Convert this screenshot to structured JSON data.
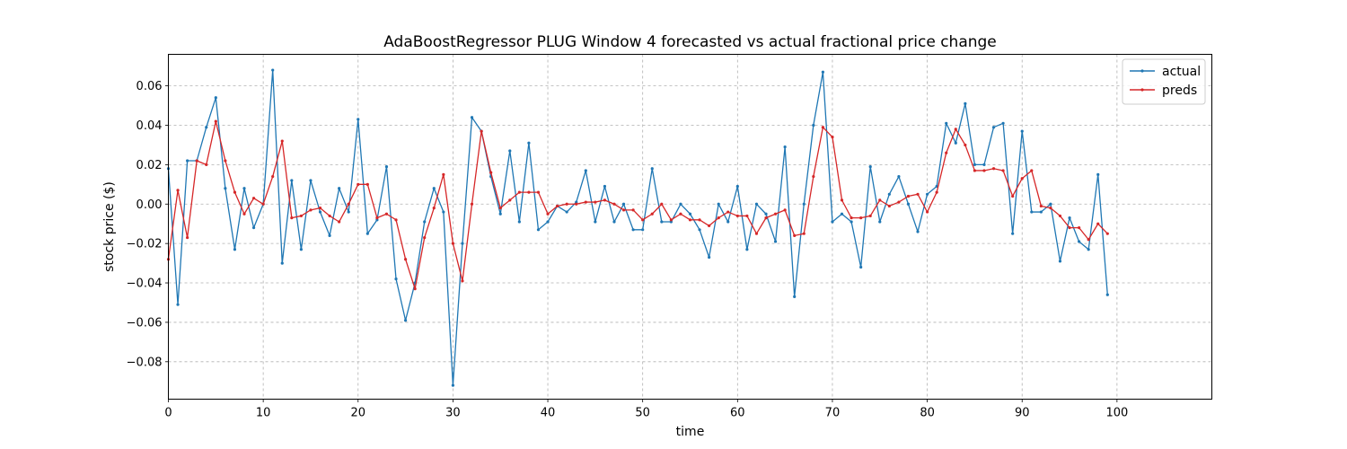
{
  "chart_data": {
    "type": "line",
    "title": "AdaBoostRegressor PLUG Window 4 forecasted vs actual fractional price change",
    "xlabel": "time",
    "ylabel": "stock price ($)",
    "xlim": [
      0,
      110
    ],
    "ylim": [
      -0.099,
      0.076
    ],
    "xticks": [
      0,
      10,
      20,
      30,
      40,
      50,
      60,
      70,
      80,
      90,
      100
    ],
    "xtick_labels": [
      "0",
      "10",
      "20",
      "30",
      "40",
      "50",
      "60",
      "70",
      "80",
      "90",
      "100"
    ],
    "yticks": [
      -0.08,
      -0.06,
      -0.04,
      -0.02,
      0.0,
      0.02,
      0.04,
      0.06
    ],
    "ytick_labels": [
      "−0.08",
      "−0.06",
      "−0.04",
      "−0.02",
      "0.00",
      "0.02",
      "0.04",
      "0.06"
    ],
    "grid": true,
    "legend_position": "top-right",
    "series": [
      {
        "name": "actual",
        "color": "#1f77b4",
        "values": [
          0.018,
          -0.051,
          0.022,
          0.022,
          0.039,
          0.054,
          0.008,
          -0.023,
          0.008,
          -0.012,
          0.0,
          0.068,
          -0.03,
          0.012,
          -0.023,
          0.012,
          -0.004,
          -0.016,
          0.008,
          -0.004,
          0.043,
          -0.015,
          -0.008,
          0.019,
          -0.038,
          -0.059,
          -0.04,
          -0.009,
          0.008,
          -0.004,
          -0.092,
          -0.02,
          0.044,
          0.037,
          0.014,
          -0.005,
          0.027,
          -0.009,
          0.031,
          -0.013,
          -0.009,
          -0.001,
          -0.004,
          0.001,
          0.017,
          -0.009,
          0.009,
          -0.009,
          0.0,
          -0.013,
          -0.013,
          0.018,
          -0.009,
          -0.009,
          0.0,
          -0.005,
          -0.013,
          -0.027,
          0.0,
          -0.009,
          0.009,
          -0.023,
          0.0,
          -0.005,
          -0.019,
          0.029,
          -0.047,
          0.0,
          0.04,
          0.067,
          -0.009,
          -0.005,
          -0.009,
          -0.032,
          0.019,
          -0.009,
          0.005,
          0.014,
          0.0,
          -0.014,
          0.005,
          0.009,
          0.041,
          0.031,
          0.051,
          0.02,
          0.02,
          0.039,
          0.041,
          -0.015,
          0.037,
          -0.004,
          -0.004,
          0.0,
          -0.029,
          -0.007,
          -0.019,
          -0.023,
          0.015,
          -0.046
        ]
      },
      {
        "name": "preds",
        "color": "#d62728",
        "values": [
          -0.028,
          0.007,
          -0.017,
          0.022,
          0.02,
          0.042,
          0.022,
          0.006,
          -0.005,
          0.003,
          0.0,
          0.014,
          0.032,
          -0.007,
          -0.006,
          -0.003,
          -0.002,
          -0.006,
          -0.009,
          0.0,
          0.01,
          0.01,
          -0.007,
          -0.005,
          -0.008,
          -0.028,
          -0.043,
          -0.017,
          -0.002,
          0.015,
          -0.02,
          -0.039,
          0.0,
          0.037,
          0.016,
          -0.002,
          0.002,
          0.006,
          0.006,
          0.006,
          -0.005,
          -0.001,
          0.0,
          0.0,
          0.001,
          0.001,
          0.002,
          0.0,
          -0.003,
          -0.003,
          -0.008,
          -0.005,
          0.0,
          -0.008,
          -0.005,
          -0.008,
          -0.008,
          -0.011,
          -0.007,
          -0.004,
          -0.006,
          -0.006,
          -0.015,
          -0.007,
          -0.005,
          -0.003,
          -0.016,
          -0.015,
          0.014,
          0.039,
          0.034,
          0.002,
          -0.007,
          -0.007,
          -0.006,
          0.002,
          -0.001,
          0.001,
          0.004,
          0.005,
          -0.004,
          0.006,
          0.026,
          0.038,
          0.03,
          0.017,
          0.017,
          0.018,
          0.017,
          0.004,
          0.013,
          0.017,
          -0.001,
          -0.002,
          -0.006,
          -0.012,
          -0.012,
          -0.018,
          -0.01,
          -0.015
        ]
      }
    ]
  }
}
